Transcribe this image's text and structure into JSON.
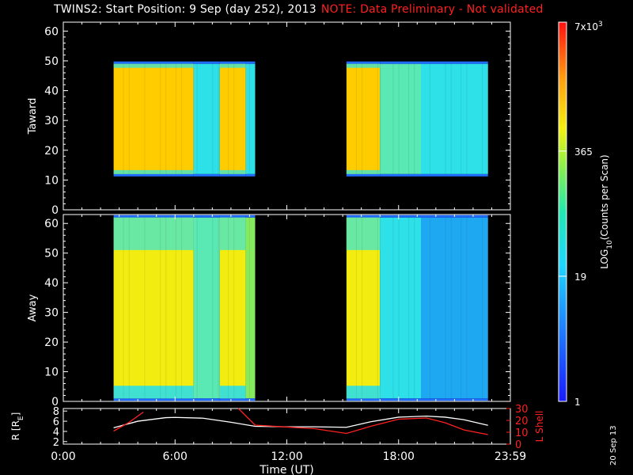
{
  "header": {
    "title": "TWINS2: Start Position:  9 Sep (day 252), 2013",
    "note": "NOTE: Data Preliminary - Not validated"
  },
  "date_stamp": "20 Sep 13",
  "colors": {
    "background": "#000000",
    "axis": "#ffffff",
    "note": "#ff2020",
    "r_line": "#ffffff",
    "lshell_line": "#ff2020"
  },
  "chart_data": [
    {
      "type": "heatmap",
      "panel": "toward",
      "ylabel": "Taward",
      "ylim": [
        0,
        63
      ],
      "yticks": [
        "0",
        "10",
        "20",
        "30",
        "40",
        "50",
        "60"
      ],
      "xlim_hours": [
        0,
        24
      ],
      "data_blocks_hours": [
        [
          2.7,
          10.3
        ],
        [
          15.2,
          22.8
        ]
      ],
      "band_bins": [
        12,
        49
      ],
      "intensity_profile": [
        {
          "start": 2.7,
          "end": 7.0,
          "level": "yellow-orange"
        },
        {
          "start": 7.0,
          "end": 8.4,
          "level": "cyan"
        },
        {
          "start": 8.4,
          "end": 9.8,
          "level": "yellow-orange"
        },
        {
          "start": 9.8,
          "end": 10.3,
          "level": "cyan"
        },
        {
          "start": 15.2,
          "end": 17.0,
          "level": "yellow-orange"
        },
        {
          "start": 17.0,
          "end": 19.2,
          "level": "green-cyan"
        },
        {
          "start": 19.2,
          "end": 22.8,
          "level": "cyan"
        }
      ]
    },
    {
      "type": "heatmap",
      "panel": "away",
      "ylabel": "Away",
      "ylim": [
        0,
        63
      ],
      "yticks": [
        "0",
        "10",
        "20",
        "30",
        "40",
        "50",
        "60"
      ],
      "xlim_hours": [
        0,
        24
      ],
      "data_blocks_hours": [
        [
          2.7,
          10.3
        ],
        [
          15.2,
          22.8
        ]
      ],
      "band_bins": [
        1,
        62
      ],
      "intensity_profile": [
        {
          "start": 2.7,
          "end": 7.0,
          "level": "yellow"
        },
        {
          "start": 7.0,
          "end": 8.4,
          "level": "green-cyan"
        },
        {
          "start": 8.4,
          "end": 9.8,
          "level": "yellow"
        },
        {
          "start": 9.8,
          "end": 10.3,
          "level": "green"
        },
        {
          "start": 15.2,
          "end": 17.0,
          "level": "yellow"
        },
        {
          "start": 17.0,
          "end": 19.2,
          "level": "cyan"
        },
        {
          "start": 19.2,
          "end": 22.8,
          "level": "blue-cyan"
        }
      ]
    },
    {
      "type": "line",
      "panel": "orbit",
      "ylabel": "R [R",
      "ylabel_sub": "E",
      "ylabel_close": "]",
      "ylim": [
        1.5,
        8.5
      ],
      "yticks": [
        "2",
        "4",
        "6",
        "8"
      ],
      "ylabel_right": "L Shell",
      "ylim_right": [
        0,
        30
      ],
      "yticks_right": [
        "0",
        "10",
        "20",
        "30"
      ],
      "xlabel": "Time (UT)",
      "xticks": [
        "0:00",
        "6:00",
        "12:00",
        "18:00",
        "23:59"
      ],
      "xlim_hours": [
        0,
        24
      ],
      "series": [
        {
          "axis": "left",
          "x": [
            2.7,
            4.0,
            5.5,
            6.0,
            7.5,
            9.0,
            10.3,
            12.0,
            13.5,
            15.2,
            16.5,
            18.0,
            19.5,
            20.5,
            21.5,
            22.8
          ],
          "y": [
            4.7,
            6.0,
            6.7,
            6.75,
            6.6,
            5.8,
            5.0,
            4.9,
            4.9,
            4.8,
            5.9,
            6.8,
            7.0,
            6.8,
            6.3,
            5.2
          ]
        },
        {
          "axis": "right",
          "segments": [
            {
              "x": [
                2.7,
                3.5,
                4.3
              ],
              "y": [
                11,
                18,
                27
              ]
            },
            {
              "x": [
                9.4,
                10.3,
                13.5,
                15.2,
                16.5,
                18.0,
                19.5,
                20.5,
                21.5,
                22.8
              ],
              "y": [
                30,
                16,
                13,
                9,
                15,
                21,
                22,
                18,
                12,
                8
              ]
            }
          ]
        }
      ]
    }
  ],
  "colorbar": {
    "label": "LOG",
    "label_sub": "10",
    "label_rest": "(Counts per Scan)",
    "ticks": [
      {
        "label": "1",
        "frac": 0.0
      },
      {
        "label": "19",
        "frac": 0.33
      },
      {
        "label": "365",
        "frac": 0.66
      },
      {
        "label": "7x10",
        "sup": "3",
        "frac": 1.0
      }
    ]
  }
}
